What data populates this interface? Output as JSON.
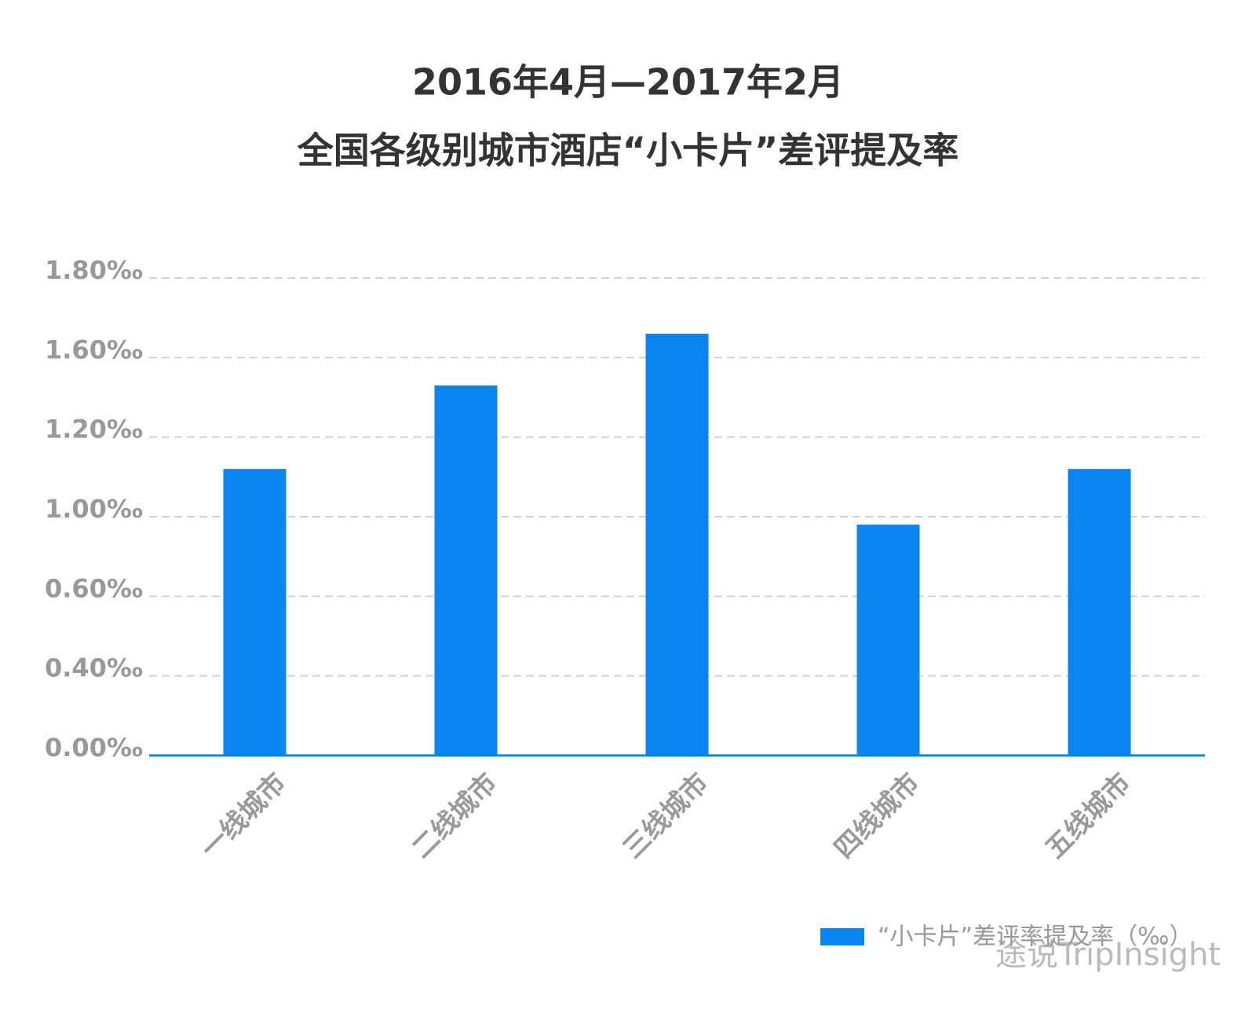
{
  "chart_data": {
    "type": "bar",
    "title": [
      "2016年4月—2017年2月",
      "全国各级别城市酒店“小卡片”差评提及率"
    ],
    "categories": [
      "一线城市",
      "二线城市",
      "三线城市",
      "四线城市",
      "五线城市"
    ],
    "series": [
      {
        "name": "“小卡片”差评率提及率（‰）",
        "color": "#0a84f0",
        "values": [
          1.12,
          1.46,
          1.66,
          0.96,
          1.12
        ]
      }
    ],
    "ylim": [
      0,
      1.8
    ],
    "yticks": [
      {
        "value": 0,
        "label": "0.00‰"
      },
      {
        "value": 0.4,
        "label": "0.40‰"
      },
      {
        "value": 0.6,
        "label": "0.60‰"
      },
      {
        "value": 1.0,
        "label": "1.00‰"
      },
      {
        "value": 1.2,
        "label": "1.20‰"
      },
      {
        "value": 1.6,
        "label": "1.60‰"
      },
      {
        "value": 1.8,
        "label": "1.80‰"
      }
    ],
    "grid": true,
    "legend": "bottom-right",
    "watermark": "途说TripInsight"
  }
}
